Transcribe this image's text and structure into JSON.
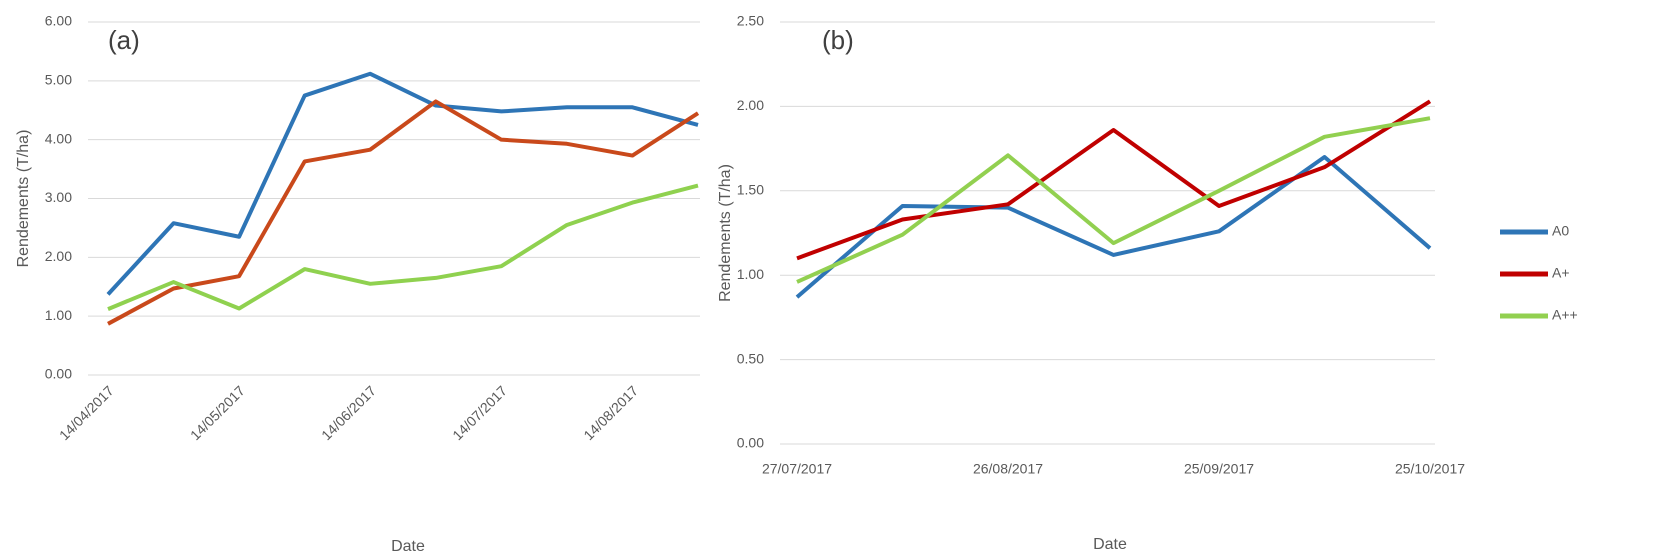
{
  "chart_data": [
    {
      "type": "line",
      "annotation": "(a)",
      "x_label": "Date",
      "y_label": "Rendements (T/ha)",
      "categories": [
        "14/04/2017",
        null,
        "14/05/2017",
        null,
        "14/06/2017",
        null,
        "14/07/2017",
        null,
        "14/08/2017",
        null
      ],
      "series": [
        {
          "color": "#2e75b6",
          "values": [
            1.37,
            2.58,
            2.35,
            4.75,
            5.12,
            4.58,
            4.48,
            4.55,
            4.55,
            4.25
          ]
        },
        {
          "color": "#c9491b",
          "values": [
            0.87,
            1.47,
            1.68,
            3.63,
            3.83,
            4.65,
            4.0,
            3.93,
            3.73,
            4.45
          ]
        },
        {
          "color": "#8fd14f",
          "values": [
            1.12,
            1.58,
            1.13,
            1.8,
            1.55,
            1.65,
            1.85,
            2.55,
            2.93,
            3.22
          ]
        }
      ],
      "ylim": [
        0,
        6
      ],
      "yticks": [
        {
          "value": 0,
          "label": "0.00"
        },
        {
          "value": 1,
          "label": "1.00"
        },
        {
          "value": 2,
          "label": "2.00"
        },
        {
          "value": 3,
          "label": "3.00"
        },
        {
          "value": 4,
          "label": "4.00"
        },
        {
          "value": 5,
          "label": "5.00"
        },
        {
          "value": 6,
          "label": "6.00"
        }
      ],
      "grid": true
    },
    {
      "type": "line",
      "annotation": "(b)",
      "x_label": "Date",
      "y_label": "Rendements (T/ha)",
      "categories": [
        "27/07/2017",
        null,
        "26/08/2017",
        null,
        "25/09/2017",
        null,
        "25/10/2017"
      ],
      "series": [
        {
          "name": "A0",
          "color": "#2e75b6",
          "values": [
            0.87,
            1.41,
            1.4,
            1.12,
            1.26,
            1.7,
            1.16
          ]
        },
        {
          "name": "A+",
          "color": "#c00000",
          "values": [
            1.1,
            1.33,
            1.42,
            1.86,
            1.41,
            1.64,
            2.03
          ]
        },
        {
          "name": "A++",
          "color": "#92d050",
          "values": [
            0.96,
            1.24,
            1.71,
            1.19,
            1.5,
            1.82,
            1.93
          ]
        }
      ],
      "ylim": [
        0,
        2.5
      ],
      "yticks": [
        {
          "value": 0,
          "label": "0.00"
        },
        {
          "value": 0.5,
          "label": "0.50"
        },
        {
          "value": 1,
          "label": "1.00"
        },
        {
          "value": 1.5,
          "label": "1.50"
        },
        {
          "value": 2,
          "label": "2.00"
        },
        {
          "value": 2.5,
          "label": "2.50"
        }
      ],
      "grid": true,
      "legend": "right"
    }
  ]
}
